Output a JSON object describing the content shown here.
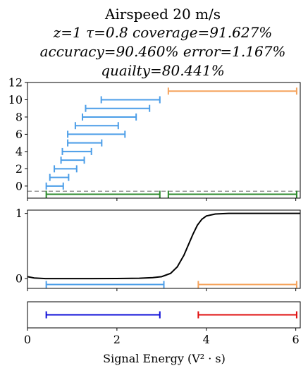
{
  "chart_data": {
    "type": "interval-plot",
    "title_lines": [
      "Airspeed 20 m/s",
      "z=1 τ=0.8 coverage=91.627%",
      "accuracy=90.460% error=1.167%",
      "quailty=80.441%"
    ],
    "xlabel": "Signal Energy (V² · s)",
    "xlim": [
      0,
      6.1
    ],
    "xticks": [
      "0",
      "2",
      "4",
      "6"
    ],
    "panels": [
      {
        "name": "intervals",
        "ylim": [
          -1.4,
          12
        ],
        "yticks": [
          "0",
          "2",
          "4",
          "6",
          "8",
          "10",
          "12"
        ],
        "dashed_line_y": -0.6,
        "intervals": [
          {
            "y": 0,
            "x0": 0.42,
            "x1": 0.8,
            "color": "#4c9ee8"
          },
          {
            "y": 1,
            "x0": 0.5,
            "x1": 0.92,
            "color": "#4c9ee8"
          },
          {
            "y": 2,
            "x0": 0.6,
            "x1": 1.1,
            "color": "#4c9ee8"
          },
          {
            "y": 3,
            "x0": 0.75,
            "x1": 1.27,
            "color": "#4c9ee8"
          },
          {
            "y": 4,
            "x0": 0.78,
            "x1": 1.43,
            "color": "#4c9ee8"
          },
          {
            "y": 5,
            "x0": 0.9,
            "x1": 1.66,
            "color": "#4c9ee8"
          },
          {
            "y": 6,
            "x0": 0.9,
            "x1": 2.18,
            "color": "#4c9ee8"
          },
          {
            "y": 7,
            "x0": 1.07,
            "x1": 2.03,
            "color": "#4c9ee8"
          },
          {
            "y": 8,
            "x0": 1.23,
            "x1": 2.43,
            "color": "#4c9ee8"
          },
          {
            "y": 9,
            "x0": 1.3,
            "x1": 2.73,
            "color": "#4c9ee8"
          },
          {
            "y": 10,
            "x0": 1.65,
            "x1": 2.96,
            "color": "#4c9ee8"
          },
          {
            "y": 11,
            "x0": 3.15,
            "x1": 6.02,
            "color": "#f5a35c"
          },
          {
            "y": -0.95,
            "x0": 0.42,
            "x1": 2.96,
            "color": "#2b8a2b"
          },
          {
            "y": -0.95,
            "x0": 3.15,
            "x1": 6.02,
            "color": "#2b8a2b"
          }
        ]
      },
      {
        "name": "sigmoid",
        "ylim": [
          -0.15,
          1.05
        ],
        "yticks": [
          "0",
          "1"
        ],
        "curve_color": "#000000",
        "curve_points": [
          [
            0.0,
            0.03
          ],
          [
            0.15,
            0.01
          ],
          [
            0.4,
            0.0
          ],
          [
            1.0,
            0.0
          ],
          [
            2.0,
            0.001
          ],
          [
            2.5,
            0.005
          ],
          [
            2.8,
            0.015
          ],
          [
            3.0,
            0.03
          ],
          [
            3.2,
            0.08
          ],
          [
            3.35,
            0.18
          ],
          [
            3.5,
            0.36
          ],
          [
            3.6,
            0.52
          ],
          [
            3.7,
            0.68
          ],
          [
            3.8,
            0.82
          ],
          [
            3.9,
            0.91
          ],
          [
            4.0,
            0.96
          ],
          [
            4.2,
            0.99
          ],
          [
            4.5,
            1.0
          ],
          [
            5.0,
            1.0
          ],
          [
            6.1,
            1.0
          ]
        ],
        "intervals": [
          {
            "y": -0.09,
            "x0": 0.42,
            "x1": 3.05,
            "color": "#4c9ee8"
          },
          {
            "y": -0.09,
            "x0": 3.82,
            "x1": 6.02,
            "color": "#f5a35c"
          }
        ]
      },
      {
        "name": "classes",
        "ylim": [
          0,
          1
        ],
        "yticks": [],
        "intervals": [
          {
            "y": 0.5,
            "x0": 0.42,
            "x1": 2.96,
            "color": "#1010d8"
          },
          {
            "y": 0.5,
            "x0": 3.82,
            "x1": 6.02,
            "color": "#e01010"
          }
        ]
      }
    ]
  }
}
